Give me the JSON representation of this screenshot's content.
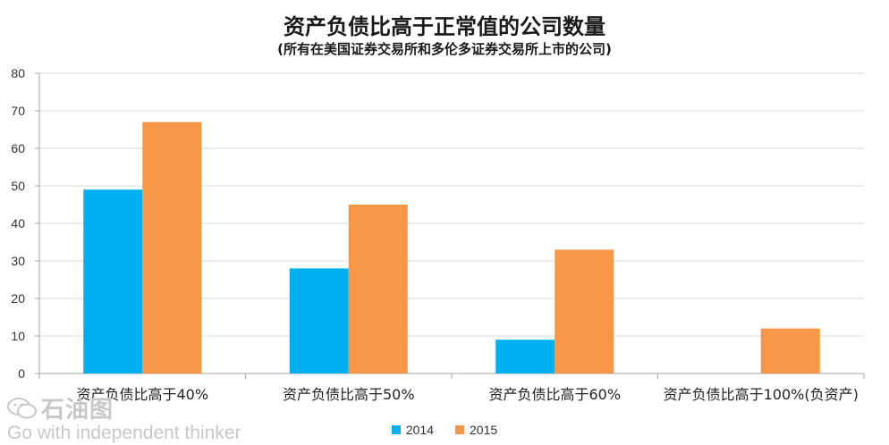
{
  "title": "资产负债比高于正常值的公司数量",
  "subtitle": "(所有在美国证券交易所和多伦多证券交易所上市的公司)",
  "watermark": {
    "brand": "石油图",
    "text": "Go with independent thinker"
  },
  "colors": {
    "series_2014": "#00b0f0",
    "series_2015": "#f79646",
    "grid": "#d9d9d9",
    "axis": "#a6a6a6"
  },
  "chart_data": {
    "type": "bar",
    "title": "资产负债比高于正常值的公司数量",
    "subtitle": "(所有在美国证券交易所和多伦多证券交易所上市的公司)",
    "categories": [
      "资产负债比高于40%",
      "资产负债比高于50%",
      "资产负债比高于60%",
      "资产负债比高于100%(负资产)"
    ],
    "series": [
      {
        "name": "2014",
        "values": [
          49,
          28,
          9,
          0
        ]
      },
      {
        "name": "2015",
        "values": [
          67,
          45,
          33,
          12
        ]
      }
    ],
    "ylim": [
      0,
      80
    ],
    "yticks": [
      0,
      10,
      20,
      30,
      40,
      50,
      60,
      70,
      80
    ],
    "grid": true,
    "legend": "bottom"
  }
}
